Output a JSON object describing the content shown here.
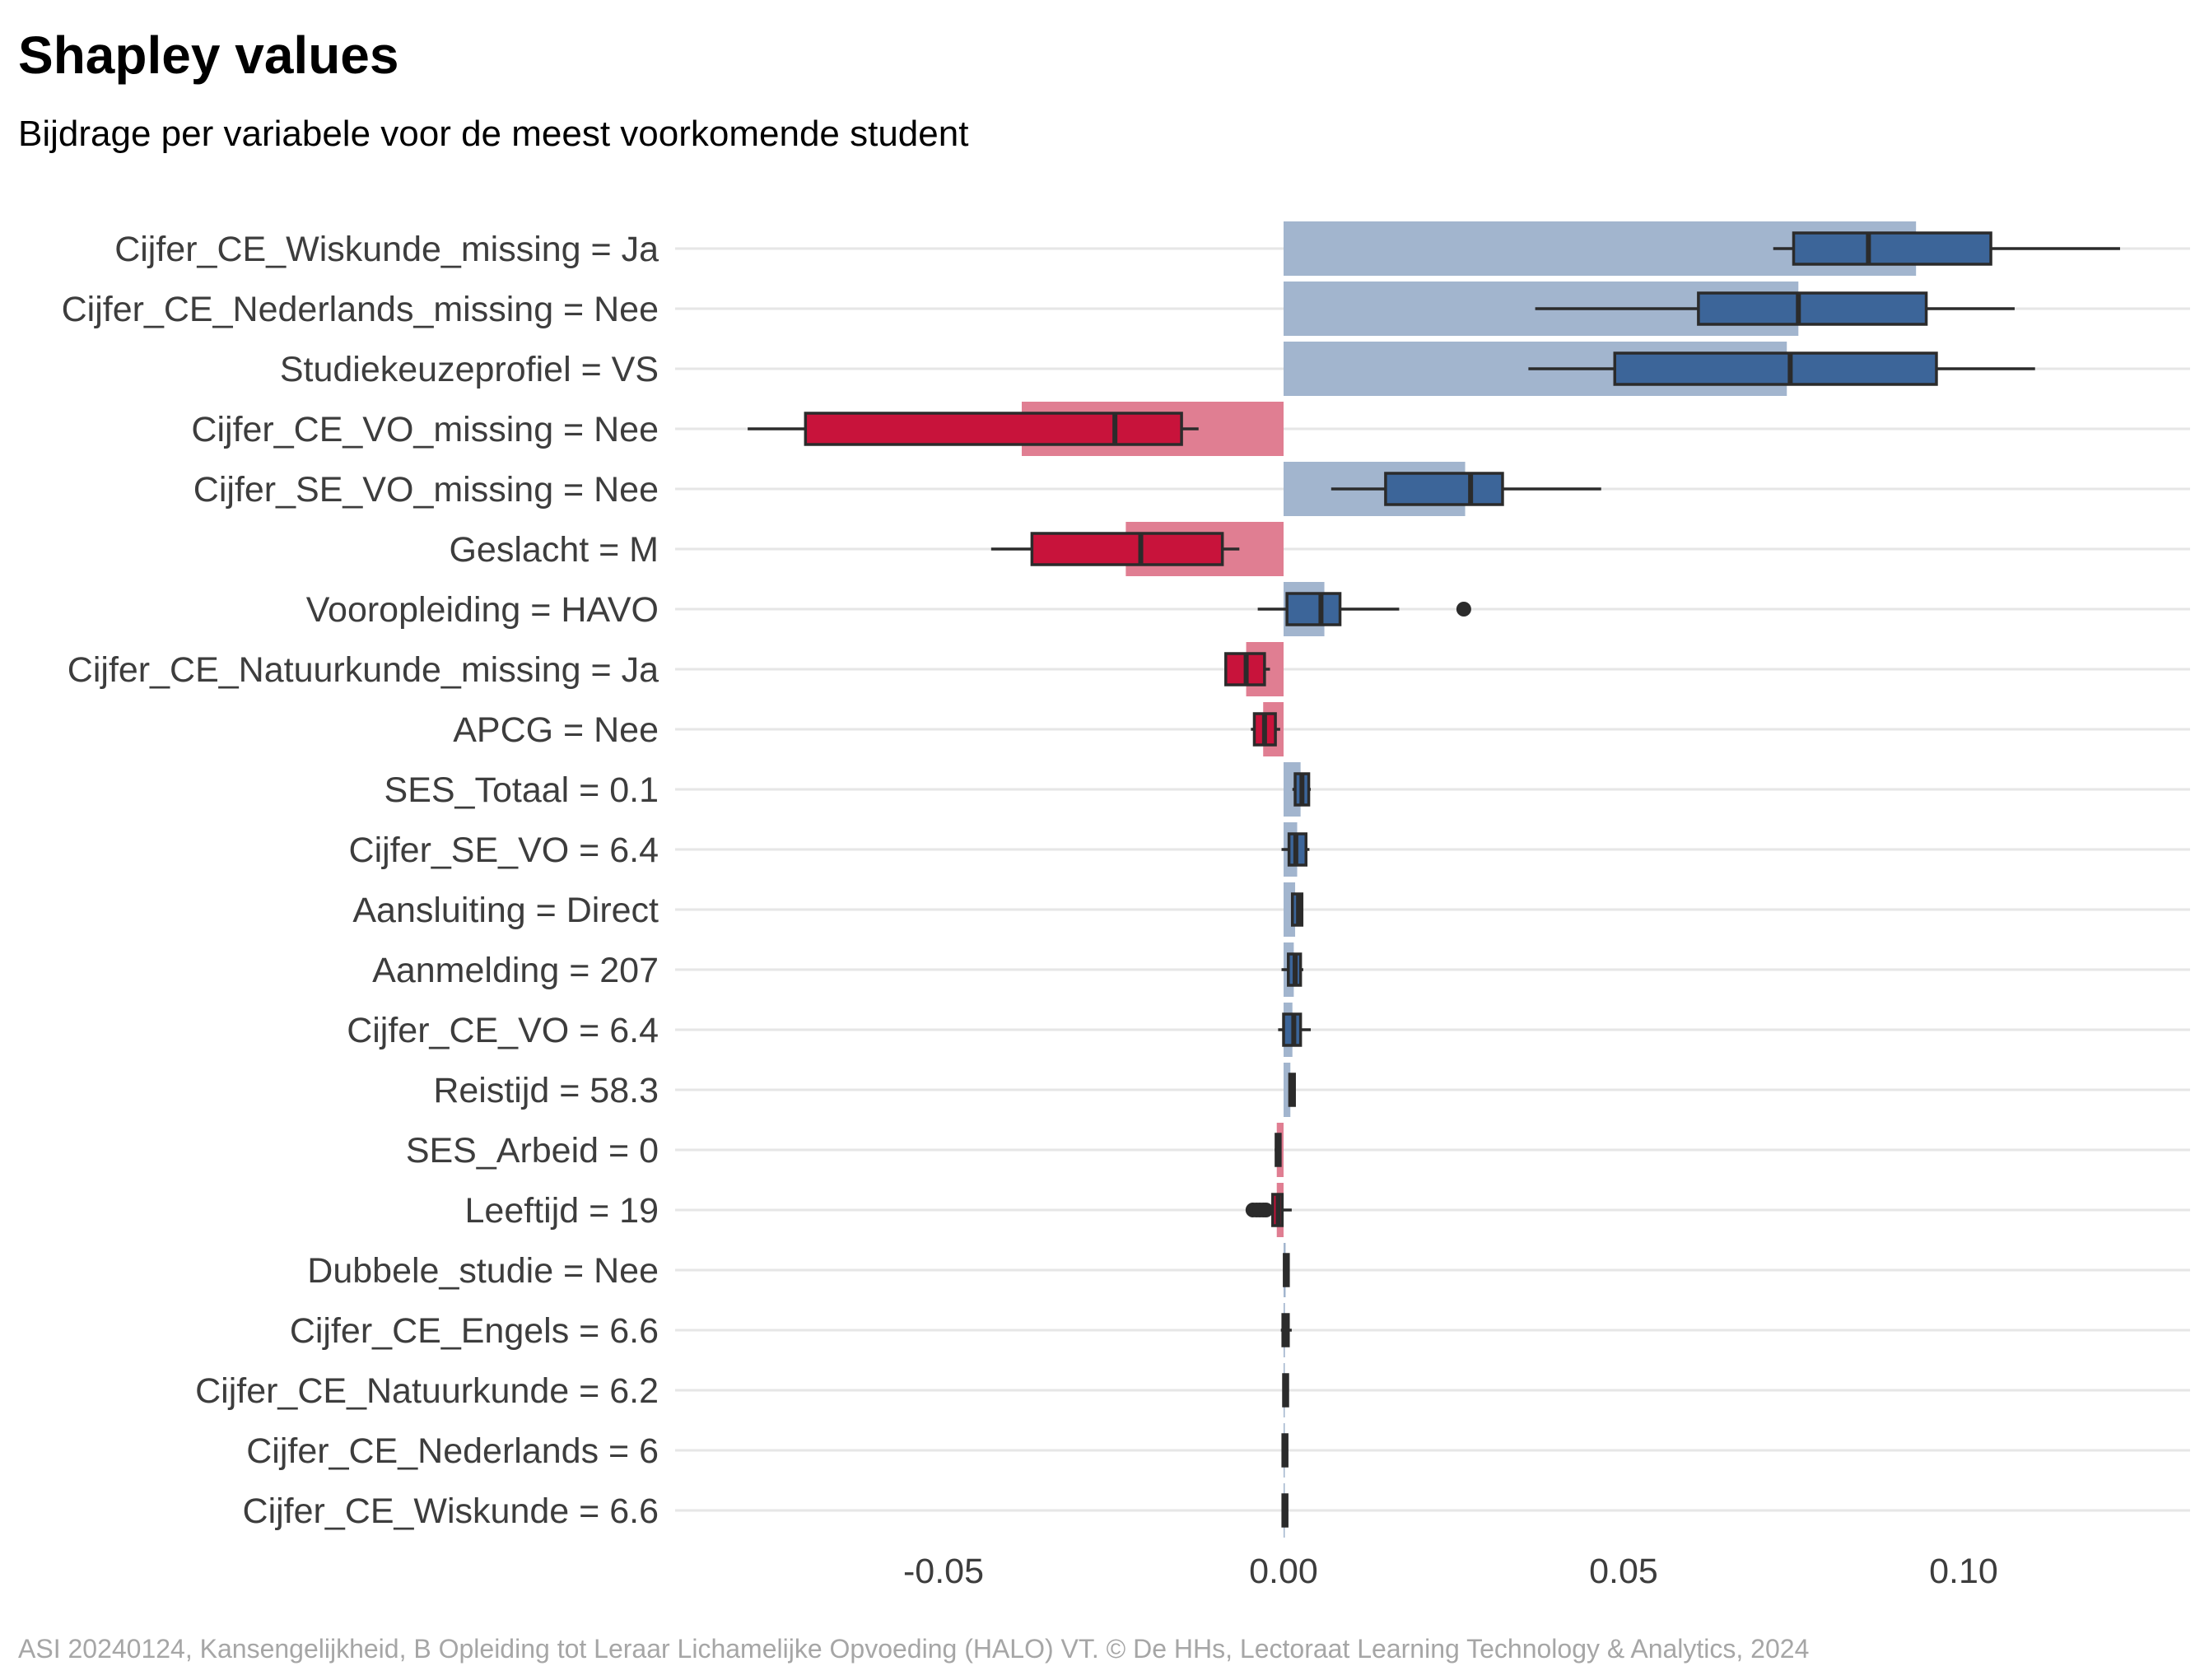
{
  "chart_data": {
    "type": "bar",
    "title": "Shapley values",
    "subtitle": "Bijdrage per variabele voor de meest voorkomende student",
    "caption": "ASI 20240124, Kansengelijkheid, B Opleiding tot Leraar Lichamelijke Opvoeding (HALO) VT. © De HHs, Lectoraat Learning Technology & Analytics, 2024",
    "xlabel": "",
    "ylabel": "",
    "xlim": [
      -0.09,
      0.13
    ],
    "xticks": [
      -0.05,
      0.0,
      0.05,
      0.1
    ],
    "xtick_labels": [
      "-0.05",
      "0.00",
      "0.05",
      "0.10"
    ],
    "grid": "horizontal",
    "colors": {
      "positive_bar": "#a2b5ce",
      "negative_bar": "#e07e92",
      "positive_box": "#3c6599",
      "negative_box": "#c8133b",
      "outline": "#2b2b2b",
      "grid": "#e6e6e6"
    },
    "features": [
      {
        "label": "Cijfer_CE_Wiskunde_missing = Ja",
        "value": 0.093,
        "box": {
          "wlo": 0.072,
          "q1": 0.075,
          "med": 0.086,
          "q3": 0.104,
          "whi": 0.123
        },
        "outliers": []
      },
      {
        "label": "Cijfer_CE_Nederlands_missing = Nee",
        "value": 0.0757,
        "box": {
          "wlo": 0.037,
          "q1": 0.061,
          "med": 0.0757,
          "q3": 0.0945,
          "whi": 0.1075
        },
        "outliers": []
      },
      {
        "label": "Studiekeuzeprofiel = VS",
        "value": 0.074,
        "box": {
          "wlo": 0.036,
          "q1": 0.0487,
          "med": 0.0745,
          "q3": 0.096,
          "whi": 0.1105
        },
        "outliers": []
      },
      {
        "label": "Cijfer_CE_VO_missing = Nee",
        "value": -0.0385,
        "box": {
          "wlo": -0.0788,
          "q1": -0.0703,
          "med": -0.0248,
          "q3": -0.015,
          "whi": -0.0125
        },
        "outliers": []
      },
      {
        "label": "Cijfer_SE_VO_missing = Nee",
        "value": 0.0267,
        "box": {
          "wlo": 0.007,
          "q1": 0.015,
          "med": 0.0275,
          "q3": 0.0322,
          "whi": 0.0467
        },
        "outliers": []
      },
      {
        "label": "Geslacht = M",
        "value": -0.0232,
        "box": {
          "wlo": -0.043,
          "q1": -0.037,
          "med": -0.021,
          "q3": -0.009,
          "whi": -0.0065
        },
        "outliers": []
      },
      {
        "label": "Vooropleiding = HAVO",
        "value": 0.006,
        "box": {
          "wlo": -0.0038,
          "q1": 0.0005,
          "med": 0.0055,
          "q3": 0.0083,
          "whi": 0.017
        },
        "outliers": [
          0.0265
        ]
      },
      {
        "label": "Cijfer_CE_Natuurkunde_missing = Ja",
        "value": -0.0055,
        "box": {
          "wlo": -0.0085,
          "q1": -0.0085,
          "med": -0.0055,
          "q3": -0.0028,
          "whi": -0.002
        },
        "outliers": []
      },
      {
        "label": "APCG = Nee",
        "value": -0.003,
        "box": {
          "wlo": -0.0048,
          "q1": -0.0043,
          "med": -0.0028,
          "q3": -0.0012,
          "whi": -0.0005
        },
        "outliers": []
      },
      {
        "label": "SES_Totaal = 0.1",
        "value": 0.0025,
        "box": {
          "wlo": 0.0013,
          "q1": 0.0017,
          "med": 0.0027,
          "q3": 0.0037,
          "whi": 0.004
        },
        "outliers": []
      },
      {
        "label": "Cijfer_SE_VO = 6.4",
        "value": 0.002,
        "box": {
          "wlo": -0.0003,
          "q1": 0.0008,
          "med": 0.0018,
          "q3": 0.0033,
          "whi": 0.0038
        },
        "outliers": []
      },
      {
        "label": "Aansluiting = Direct",
        "value": 0.0017,
        "box": {
          "wlo": 0.0012,
          "q1": 0.0013,
          "med": 0.0022,
          "q3": 0.0027,
          "whi": 0.0029
        },
        "outliers": []
      },
      {
        "label": "Aanmelding = 207",
        "value": 0.0015,
        "box": {
          "wlo": -0.0003,
          "q1": 0.0007,
          "med": 0.0017,
          "q3": 0.0025,
          "whi": 0.0029
        },
        "outliers": []
      },
      {
        "label": "Cijfer_CE_VO = 6.4",
        "value": 0.0013,
        "box": {
          "wlo": -0.0008,
          "q1": 0.0,
          "med": 0.0015,
          "q3": 0.0025,
          "whi": 0.004
        },
        "outliers": []
      },
      {
        "label": "Reistijd = 58.3",
        "value": 0.001,
        "box": {
          "wlo": 0.0008,
          "q1": 0.0009,
          "med": 0.0013,
          "q3": 0.0016,
          "whi": 0.0017
        },
        "outliers": []
      },
      {
        "label": "SES_Arbeid = 0",
        "value": -0.001,
        "box": {
          "wlo": -0.0013,
          "q1": -0.0011,
          "med": -0.0008,
          "q3": -0.0006,
          "whi": -0.0004
        },
        "outliers": []
      },
      {
        "label": "Leeftijd = 19",
        "value": -0.001,
        "box": {
          "wlo": -0.0012,
          "q1": -0.0016,
          "med": -0.0008,
          "q3": -0.0002,
          "whi": 0.0012
        },
        "outliers": [
          -0.0045,
          -0.004,
          -0.0035,
          -0.003,
          -0.0026
        ]
      },
      {
        "label": "Dubbele_studie = Nee",
        "value": 0.0003,
        "box": {
          "wlo": 0.0,
          "q1": 0.0001,
          "med": 0.0004,
          "q3": 0.0007,
          "whi": 0.0009
        },
        "outliers": []
      },
      {
        "label": "Cijfer_CE_Engels = 6.6",
        "value": 0.0002,
        "box": {
          "wlo": -0.0004,
          "q1": -0.0001,
          "med": 0.0003,
          "q3": 0.0007,
          "whi": 0.0012
        },
        "outliers": []
      },
      {
        "label": "Cijfer_CE_Natuurkunde = 6.2",
        "value": 0.0001,
        "box": {
          "wlo": -0.0001,
          "q1": 0.0,
          "med": 0.0002,
          "q3": 0.0005,
          "whi": 0.0006
        },
        "outliers": []
      },
      {
        "label": "Cijfer_CE_Nederlands = 6",
        "value": 0.0001,
        "box": {
          "wlo": -0.0002,
          "q1": -0.0001,
          "med": 0.0001,
          "q3": 0.0004,
          "whi": 0.0005
        },
        "outliers": []
      },
      {
        "label": "Cijfer_CE_Wiskunde = 6.6",
        "value": 0.0001,
        "box": {
          "wlo": -0.0002,
          "q1": -0.0001,
          "med": 0.0001,
          "q3": 0.0003,
          "whi": 0.0004
        },
        "outliers": []
      }
    ]
  }
}
